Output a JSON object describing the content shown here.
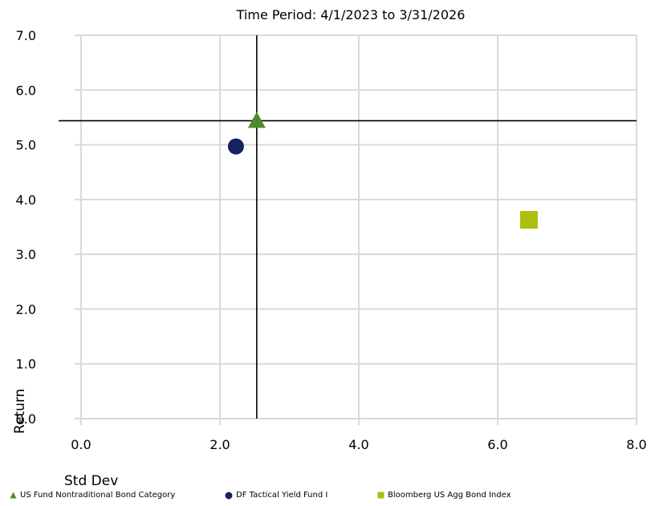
{
  "chart_data": {
    "type": "scatter",
    "title": "Time Period: 4/1/2023 to 3/31/2026",
    "xlabel": "Std Dev",
    "ylabel": "Return",
    "xlim": [
      0,
      8
    ],
    "ylim": [
      0,
      7
    ],
    "xticks": [
      0,
      2,
      4,
      6,
      8
    ],
    "yticks": [
      0,
      1,
      2,
      3,
      4,
      5,
      6,
      7
    ],
    "x_tick_labels": [
      "0.0",
      "2.0",
      "4.0",
      "6.0",
      "8.0"
    ],
    "y_tick_labels": [
      "0.0",
      "1.0",
      "2.0",
      "3.0",
      "4.0",
      "5.0",
      "6.0",
      "7.0"
    ],
    "grid": true,
    "crosshair": {
      "x": 2.53,
      "y": 5.44
    },
    "legend_position": "bottom",
    "series": [
      {
        "name": "US Fund Nontraditional Bond Category",
        "marker": "triangle",
        "color": "#4c8c2b",
        "x": 2.53,
        "y": 5.44
      },
      {
        "name": "DF Tactical Yield Fund I",
        "marker": "circle",
        "color": "#14235f",
        "x": 2.23,
        "y": 4.97
      },
      {
        "name": "Bloomberg US Agg Bond Index",
        "marker": "square",
        "color": "#aebd0e",
        "x": 6.45,
        "y": 3.63
      }
    ]
  }
}
